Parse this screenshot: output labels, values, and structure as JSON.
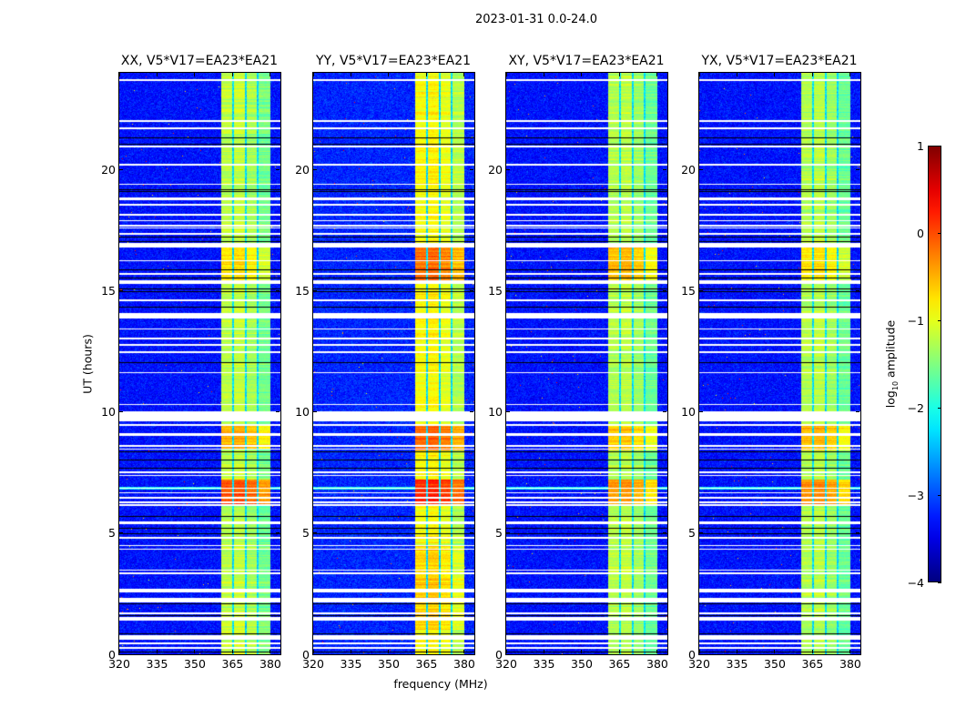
{
  "suptitle": "2023-01-31 0.0-24.0",
  "xlabel": "frequency (MHz)",
  "ylabel": "UT (hours)",
  "colorbar": {
    "label_prefix": "log",
    "label_sub": "10",
    "label_suffix": " amplitude",
    "range": [
      -4,
      1
    ],
    "ticks": [
      1,
      0,
      -1,
      -2,
      -3,
      -4
    ],
    "tick_labels": [
      "1",
      "0",
      "−1",
      "−2",
      "−3",
      "−4"
    ],
    "colormap": "jet"
  },
  "chart_data": [
    {
      "type": "heatmap",
      "title": "XX, V5*V17=EA23*EA21",
      "xlim": [
        320,
        384
      ],
      "ylim": [
        0,
        24
      ],
      "xticks": [
        320,
        335,
        350,
        365,
        380
      ],
      "xtick_labels": [
        "320",
        "335",
        "350",
        "365",
        "380"
      ],
      "yticks": [
        0,
        5,
        10,
        15,
        20
      ],
      "ytick_labels": [
        "0",
        "5",
        "10",
        "15",
        "20"
      ],
      "background_level": -3.3,
      "band_level": -1.25,
      "enhanced": [
        {
          "hours": [
            6.15,
            7.2
          ],
          "level": -0.1
        },
        {
          "hours": [
            8.5,
            9.5
          ],
          "level": -0.6
        },
        {
          "hours": [
            15.4,
            16.8
          ],
          "level": -0.8
        }
      ]
    },
    {
      "type": "heatmap",
      "title": "YY, V5*V17=EA23*EA21",
      "xlim": [
        320,
        384
      ],
      "ylim": [
        0,
        24
      ],
      "xticks": [
        320,
        335,
        350,
        365,
        380
      ],
      "xtick_labels": [
        "320",
        "335",
        "350",
        "365",
        "380"
      ],
      "yticks": [
        0,
        5,
        10,
        15,
        20
      ],
      "ytick_labels": [
        "0",
        "5",
        "10",
        "15",
        "20"
      ],
      "background_level": -3.2,
      "band_level": -0.95,
      "enhanced": [
        {
          "hours": [
            6.15,
            7.2
          ],
          "level": 0.15
        },
        {
          "hours": [
            8.4,
            9.5
          ],
          "level": -0.2
        },
        {
          "hours": [
            15.4,
            16.8
          ],
          "level": -0.25
        },
        {
          "hours": [
            1.0,
            4.5
          ],
          "level": -0.7
        }
      ]
    },
    {
      "type": "heatmap",
      "title": "XY, V5*V17=EA23*EA21",
      "xlim": [
        320,
        384
      ],
      "ylim": [
        0,
        24
      ],
      "xticks": [
        320,
        335,
        350,
        365,
        380
      ],
      "xtick_labels": [
        "320",
        "335",
        "350",
        "365",
        "380"
      ],
      "yticks": [
        0,
        5,
        10,
        15,
        20
      ],
      "ytick_labels": [
        "0",
        "5",
        "10",
        "15",
        "20"
      ],
      "background_level": -3.3,
      "band_level": -1.3,
      "enhanced": [
        {
          "hours": [
            6.15,
            7.2
          ],
          "level": -0.45
        },
        {
          "hours": [
            8.4,
            9.5
          ],
          "level": -0.7
        },
        {
          "hours": [
            15.4,
            16.8
          ],
          "level": -0.6
        }
      ]
    },
    {
      "type": "heatmap",
      "title": "YX, V5*V17=EA23*EA21",
      "xlim": [
        320,
        384
      ],
      "ylim": [
        0,
        24
      ],
      "xticks": [
        320,
        335,
        350,
        365,
        380
      ],
      "xtick_labels": [
        "320",
        "335",
        "350",
        "365",
        "380"
      ],
      "yticks": [
        0,
        5,
        10,
        15,
        20
      ],
      "ytick_labels": [
        "0",
        "5",
        "10",
        "15",
        "20"
      ],
      "background_level": -3.3,
      "band_level": -1.3,
      "enhanced": [
        {
          "hours": [
            6.15,
            7.2
          ],
          "level": -0.35
        },
        {
          "hours": [
            8.4,
            9.5
          ],
          "level": -0.6
        },
        {
          "hours": [
            15.4,
            16.8
          ],
          "level": -0.8
        }
      ]
    }
  ],
  "band": {
    "mhz": [
      360.6,
      380.0
    ],
    "subband_edges_mhz": [
      360.6,
      365.2,
      370.2,
      375.0,
      380.0
    ]
  },
  "flagged_hours": [
    [
      23.66,
      23.72
    ],
    [
      21.97,
      22.03
    ],
    [
      21.67,
      21.73
    ],
    [
      20.92,
      20.98
    ],
    [
      20.17,
      20.23
    ],
    [
      19.37,
      19.43
    ],
    [
      18.74,
      18.86
    ],
    [
      18.52,
      18.58
    ],
    [
      18.12,
      18.18
    ],
    [
      17.87,
      17.93
    ],
    [
      17.67,
      17.73
    ],
    [
      17.57,
      17.63
    ],
    [
      17.32,
      17.38
    ],
    [
      16.8,
      16.97
    ],
    [
      16.22,
      16.28
    ],
    [
      15.67,
      15.73
    ],
    [
      15.3,
      15.42
    ],
    [
      14.57,
      14.63
    ],
    [
      13.86,
      14.07
    ],
    [
      13.39,
      13.45
    ],
    [
      13.01,
      13.07
    ],
    [
      12.74,
      12.8
    ],
    [
      12.45,
      12.51
    ],
    [
      11.6,
      11.66
    ],
    [
      10.28,
      10.34
    ],
    [
      9.62,
      10.04
    ],
    [
      9.44,
      9.5
    ],
    [
      9.03,
      9.14
    ],
    [
      8.57,
      8.63
    ],
    [
      8.44,
      8.5
    ],
    [
      7.48,
      7.54
    ],
    [
      7.35,
      7.41
    ],
    [
      6.82,
      6.88
    ],
    [
      6.63,
      6.69
    ],
    [
      6.44,
      6.5
    ],
    [
      6.25,
      6.31
    ],
    [
      6.13,
      6.19
    ],
    [
      5.38,
      5.5
    ],
    [
      4.78,
      4.84
    ],
    [
      4.46,
      4.52
    ],
    [
      4.31,
      4.37
    ],
    [
      3.44,
      3.5
    ],
    [
      3.31,
      3.37
    ],
    [
      2.56,
      2.72
    ],
    [
      2.15,
      2.34
    ],
    [
      1.66,
      1.72
    ],
    [
      1.4,
      1.53
    ],
    [
      0.59,
      0.78
    ],
    [
      0.43,
      0.49
    ],
    [
      0.24,
      0.3
    ]
  ],
  "scan_boundary_hours": [
    21.33,
    21.08,
    19.18,
    19.12,
    17.24,
    17.05,
    15.9,
    15.55,
    15.1,
    14.98,
    14.36,
    12.04,
    8.37,
    8.04,
    7.69,
    5.72,
    5.22,
    4.99,
    2.11,
    1.61,
    0.86,
    0.11
  ]
}
